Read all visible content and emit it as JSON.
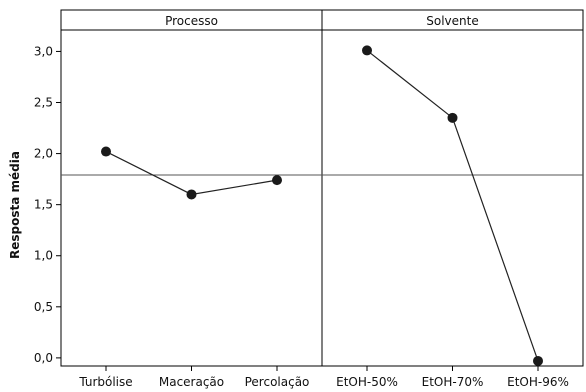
{
  "chart_data": {
    "type": "line",
    "ylabel": "Resposta média",
    "ylim": [
      -0.05,
      3.2
    ],
    "yticks": [
      "0,0",
      "0,5",
      "1,0",
      "1,5",
      "2,0",
      "2,5",
      "3,0"
    ],
    "ytick_values": [
      0,
      0.5,
      1,
      1.5,
      2,
      2.5,
      3
    ],
    "reference_line": 1.79,
    "grid": false,
    "panels": [
      {
        "title": "Processo",
        "categories": [
          "Turbólise",
          "Maceração",
          "Percolação"
        ],
        "values": [
          2.02,
          1.6,
          1.74
        ]
      },
      {
        "title": "Solvente",
        "categories": [
          "EtOH-50%",
          "EtOH-70%",
          "EtOH-96%"
        ],
        "values": [
          3.01,
          2.35,
          -0.03
        ]
      }
    ],
    "colors": {
      "line": "#222222",
      "marker": "#1a1a1a",
      "frame": "#000000",
      "reference": "#555555"
    }
  }
}
